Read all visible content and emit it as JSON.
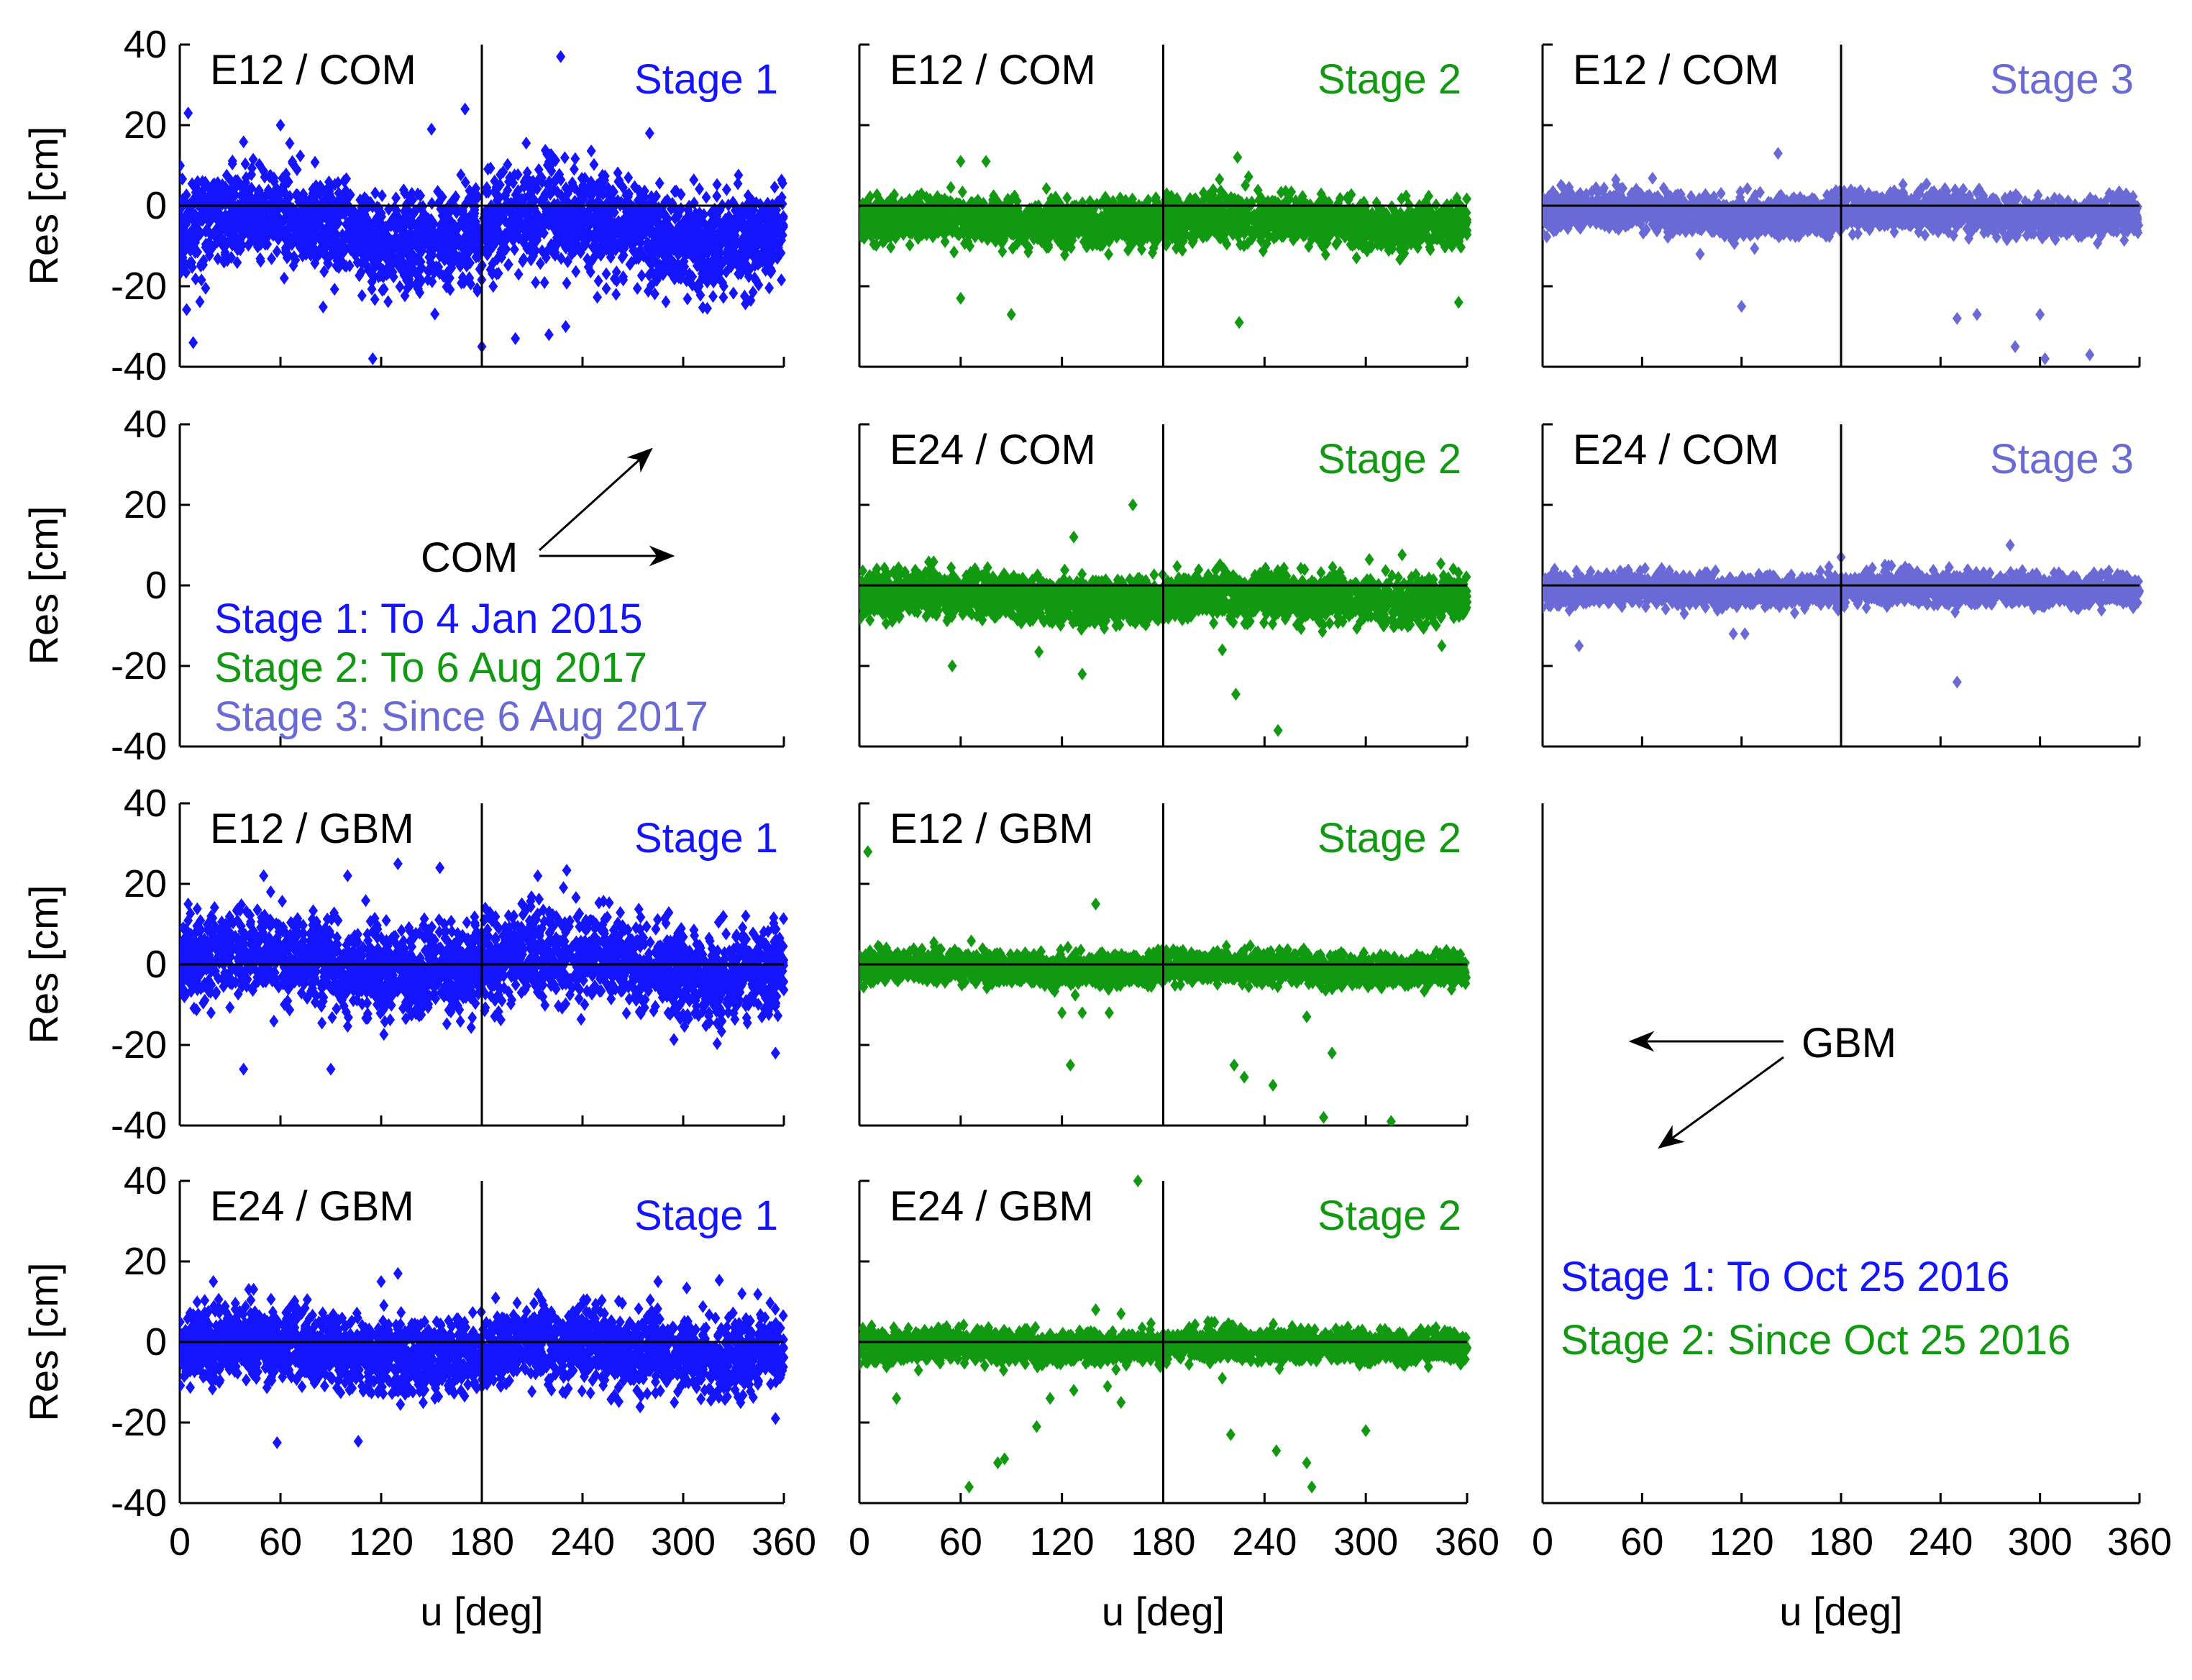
{
  "chart_data": {
    "type": "scatter",
    "colors": {
      "stage1": "#1414ff",
      "stage2": "#119911",
      "stage3": "#6a6ad6",
      "axis": "#000000"
    },
    "xlabel": "u [deg]",
    "ylabel": "Res [cm]",
    "xlim": [
      0,
      360
    ],
    "ylim": [
      -40,
      40
    ],
    "x_ticks": [
      "0",
      "60",
      "120",
      "180",
      "240",
      "300",
      "360"
    ],
    "y_ticks": [
      "40",
      "20",
      "0",
      "-20",
      "-40"
    ],
    "y_tick_values": [
      40,
      20,
      0,
      -20,
      -40
    ],
    "x_tick_values": [
      0,
      60,
      120,
      180,
      240,
      300,
      360
    ],
    "panels": [
      {
        "id": "r1c1",
        "row": 0,
        "col": 0,
        "label": "E12 / COM",
        "stage_label": "Stage 1",
        "stage": "stage1",
        "spread": 13,
        "bias": -6,
        "sinus_amp": 4,
        "outliers": [
          [
            5,
            23
          ],
          [
            8,
            -34
          ],
          [
            60,
            20
          ],
          [
            150,
            19
          ],
          [
            170,
            24
          ],
          [
            180,
            -35
          ],
          [
            227,
            37
          ],
          [
            280,
            18
          ],
          [
            115,
            -38
          ],
          [
            200,
            -33
          ],
          [
            220,
            -32
          ],
          [
            260,
            -22
          ],
          [
            230,
            -30
          ]
        ]
      },
      {
        "id": "r1c2",
        "row": 0,
        "col": 1,
        "label": "E12 / COM",
        "stage_label": "Stage 2",
        "stage": "stage2",
        "spread": 6,
        "bias": -4,
        "sinus_amp": 1,
        "outliers": [
          [
            60,
            -23
          ],
          [
            90,
            -27
          ],
          [
            225,
            -29
          ],
          [
            224,
            12
          ],
          [
            355,
            -24
          ],
          [
            60,
            11
          ],
          [
            75,
            11
          ]
        ]
      },
      {
        "id": "r1c3",
        "row": 0,
        "col": 2,
        "label": "E12 / COM",
        "stage_label": "Stage 3",
        "stage": "stage3",
        "spread": 5,
        "bias": -2,
        "sinus_amp": 1,
        "outliers": [
          [
            120,
            -25
          ],
          [
            142,
            13
          ],
          [
            250,
            -28
          ],
          [
            262,
            -27
          ],
          [
            285,
            -35
          ],
          [
            300,
            -27
          ],
          [
            303,
            -38
          ],
          [
            330,
            -37
          ],
          [
            95,
            -12
          ]
        ]
      },
      {
        "id": "r2c2",
        "row": 1,
        "col": 1,
        "label": "E24 / COM",
        "stage_label": "Stage 2",
        "stage": "stage2",
        "spread": 6,
        "bias": -3,
        "sinus_amp": 1,
        "outliers": [
          [
            55,
            -20
          ],
          [
            132,
            -22
          ],
          [
            162,
            20
          ],
          [
            215,
            -16
          ],
          [
            223,
            -27
          ],
          [
            248,
            -36
          ],
          [
            345,
            -15
          ],
          [
            127,
            12
          ]
        ]
      },
      {
        "id": "r2c3",
        "row": 1,
        "col": 2,
        "label": "E24 / COM",
        "stage_label": "Stage 3",
        "stage": "stage3",
        "spread": 4,
        "bias": -1,
        "sinus_amp": 0.5,
        "outliers": [
          [
            22,
            -15
          ],
          [
            115,
            -12
          ],
          [
            122,
            -12
          ],
          [
            250,
            -24
          ],
          [
            282,
            10
          ],
          [
            180,
            7
          ]
        ]
      },
      {
        "id": "r3c1",
        "row": 2,
        "col": 0,
        "label": "E12 / GBM",
        "stage_label": "Stage 1",
        "stage": "stage1",
        "spread": 12,
        "bias": 0,
        "sinus_amp": 3,
        "outliers": [
          [
            38,
            -26
          ],
          [
            90,
            -26
          ],
          [
            155,
            24
          ],
          [
            50,
            22
          ],
          [
            100,
            22
          ],
          [
            130,
            25
          ],
          [
            5,
            15
          ],
          [
            355,
            -22
          ]
        ]
      },
      {
        "id": "r3c2",
        "row": 2,
        "col": 1,
        "label": "E12 / GBM",
        "stage_label": "Stage 2",
        "stage": "stage2",
        "spread": 4,
        "bias": -1,
        "sinus_amp": 0.5,
        "outliers": [
          [
            5,
            28
          ],
          [
            140,
            15
          ],
          [
            125,
            -25
          ],
          [
            222,
            -25
          ],
          [
            228,
            -28
          ],
          [
            245,
            -30
          ],
          [
            265,
            -13
          ],
          [
            275,
            -38
          ],
          [
            280,
            -22
          ],
          [
            315,
            -39
          ],
          [
            120,
            -12
          ],
          [
            132,
            -12
          ],
          [
            148,
            -12
          ]
        ]
      },
      {
        "id": "r4c1",
        "row": 3,
        "col": 0,
        "label": "E24 / GBM",
        "stage_label": "Stage 1",
        "stage": "stage1",
        "spread": 10,
        "bias": -2,
        "sinus_amp": 2,
        "outliers": [
          [
            58,
            -25
          ],
          [
            20,
            15
          ],
          [
            120,
            15
          ],
          [
            130,
            17
          ],
          [
            285,
            15
          ],
          [
            335,
            12
          ],
          [
            355,
            -19
          ]
        ]
      },
      {
        "id": "r4c2",
        "row": 3,
        "col": 1,
        "label": "E24 / GBM",
        "stage_label": "Stage 2",
        "stage": "stage2",
        "spread": 4,
        "bias": -1,
        "sinus_amp": 0.5,
        "outliers": [
          [
            22,
            -14
          ],
          [
            65,
            -36
          ],
          [
            82,
            -30
          ],
          [
            86,
            -29
          ],
          [
            105,
            -21
          ],
          [
            113,
            -14
          ],
          [
            127,
            -12
          ],
          [
            147,
            -11
          ],
          [
            155,
            -15
          ],
          [
            165,
            40
          ],
          [
            220,
            -23
          ],
          [
            247,
            -27
          ],
          [
            265,
            -30
          ],
          [
            268,
            -36
          ],
          [
            300,
            -22
          ],
          [
            215,
            -9
          ],
          [
            35,
            -7
          ],
          [
            140,
            8
          ],
          [
            155,
            7
          ]
        ]
      }
    ],
    "annotations": {
      "com_label": "COM",
      "gbm_label": "GBM",
      "com_legend": [
        {
          "text": "Stage 1: To 4 Jan 2015",
          "stage": "stage1"
        },
        {
          "text": "Stage 2: To 6 Aug 2017",
          "stage": "stage2"
        },
        {
          "text": "Stage 3: Since 6 Aug 2017",
          "stage": "stage3"
        }
      ],
      "gbm_legend": [
        {
          "text": "Stage 1: To Oct 25 2016",
          "stage": "stage1"
        },
        {
          "text": "Stage 2: Since Oct 25 2016",
          "stage": "stage2"
        }
      ]
    }
  }
}
